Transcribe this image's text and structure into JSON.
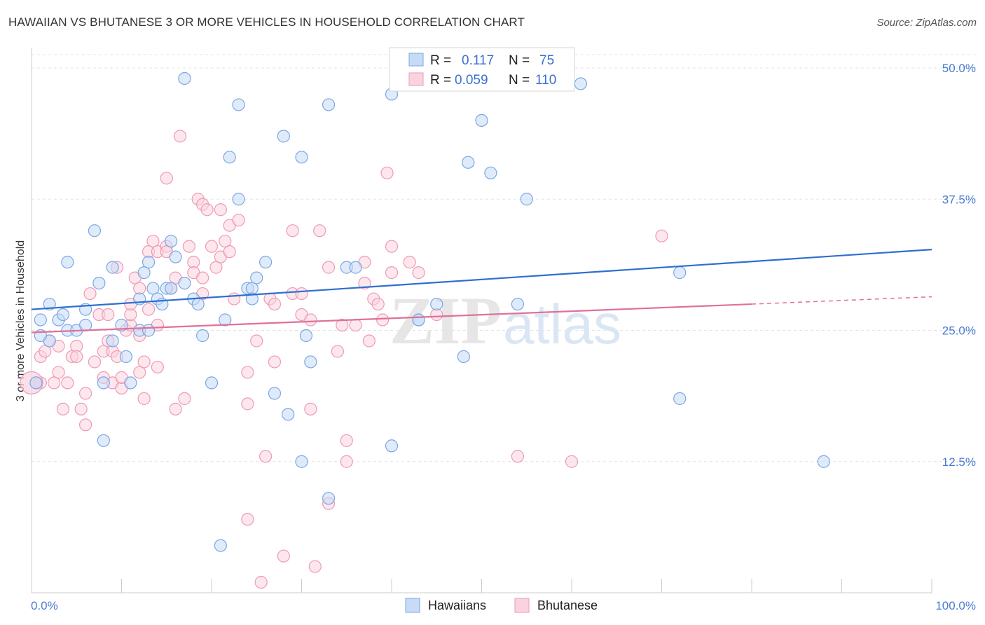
{
  "title": "HAWAIIAN VS BHUTANESE 3 OR MORE VEHICLES IN HOUSEHOLD CORRELATION CHART",
  "source": "Source: ZipAtlas.com",
  "colors": {
    "hawaiian": "#7aa7e6",
    "hawaiian_fill": "#c7dbf6",
    "hawaiian_line": "#2f6fcf",
    "bhutanese": "#ef9ab5",
    "bhutanese_fill": "#f9d3df",
    "bhutanese_line": "#e0709a",
    "tick": "#4a7bd0"
  },
  "legend": {
    "r_label": "R =",
    "n_label": "N =",
    "hawaiian_r": "0.117",
    "hawaiian_n": "75",
    "bhutanese_r": "0.059",
    "bhutanese_n": "110"
  },
  "chart_data": {
    "type": "scatter",
    "ylabel": "3 or more Vehicles in Household",
    "xlim": [
      0,
      100
    ],
    "ylim": [
      0,
      52.5
    ],
    "x_ticks": [
      "0.0%",
      "100.0%"
    ],
    "y_ticks": [
      {
        "v": 12.5,
        "label": "12.5%"
      },
      {
        "v": 25.0,
        "label": "25.0%"
      },
      {
        "v": 37.5,
        "label": "37.5%"
      },
      {
        "v": 50.0,
        "label": "50.0%"
      }
    ],
    "series": [
      {
        "name": "Hawaiians",
        "trend": [
          [
            0,
            27.0
          ],
          [
            100,
            32.7
          ]
        ],
        "points": [
          [
            1,
            26
          ],
          [
            2,
            27.5
          ],
          [
            2,
            24
          ],
          [
            3,
            26
          ],
          [
            4,
            25
          ],
          [
            1,
            24.5
          ],
          [
            3.5,
            26.5
          ],
          [
            5,
            25
          ],
          [
            6,
            27
          ],
          [
            4,
            31.5
          ],
          [
            6,
            25.5
          ],
          [
            7,
            34.5
          ],
          [
            7.5,
            29.5
          ],
          [
            8,
            20
          ],
          [
            9,
            24
          ],
          [
            9,
            31
          ],
          [
            8,
            14.5
          ],
          [
            10,
            25.5
          ],
          [
            10.5,
            22.5
          ],
          [
            11,
            20
          ],
          [
            12,
            25
          ],
          [
            12,
            28
          ],
          [
            12.5,
            30.5
          ],
          [
            13,
            31.5
          ],
          [
            13.5,
            29
          ],
          [
            14,
            28
          ],
          [
            15,
            29
          ],
          [
            14.5,
            27.5
          ],
          [
            15.5,
            29
          ],
          [
            15.5,
            33.5
          ],
          [
            16,
            32
          ],
          [
            17,
            49
          ],
          [
            17,
            29.5
          ],
          [
            18,
            28
          ],
          [
            18.5,
            27.5
          ],
          [
            19,
            24.5
          ],
          [
            20,
            20
          ],
          [
            21,
            4.5
          ],
          [
            21.5,
            26
          ],
          [
            22,
            41.5
          ],
          [
            23,
            37.5
          ],
          [
            23,
            46.5
          ],
          [
            24,
            29
          ],
          [
            24.5,
            29
          ],
          [
            24.5,
            28
          ],
          [
            25,
            30
          ],
          [
            26,
            31.5
          ],
          [
            27,
            19
          ],
          [
            28,
            43.5
          ],
          [
            28.5,
            17
          ],
          [
            30,
            41.5
          ],
          [
            30,
            12.5
          ],
          [
            30.5,
            24.5
          ],
          [
            31,
            22
          ],
          [
            33,
            9
          ],
          [
            33,
            46.5
          ],
          [
            35,
            31
          ],
          [
            36,
            31
          ],
          [
            40,
            14
          ],
          [
            40,
            47.5
          ],
          [
            43,
            26
          ],
          [
            43,
            26
          ],
          [
            45,
            27.5
          ],
          [
            48.5,
            41
          ],
          [
            48,
            22.5
          ],
          [
            50,
            45
          ],
          [
            51,
            40
          ],
          [
            54,
            27.5
          ],
          [
            55,
            37.5
          ],
          [
            61,
            48.5
          ],
          [
            72,
            18.5
          ],
          [
            72,
            30.5
          ],
          [
            88,
            12.5
          ],
          [
            0.5,
            20
          ],
          [
            13,
            25
          ]
        ]
      },
      {
        "name": "Bhutanese",
        "trend": [
          [
            0,
            24.8
          ],
          [
            80,
            27.5
          ]
        ],
        "trend_dashed": [
          [
            80,
            27.5
          ],
          [
            100,
            28.2
          ]
        ],
        "points": [
          [
            0.5,
            20
          ],
          [
            1,
            22.5
          ],
          [
            1,
            20
          ],
          [
            1.5,
            23
          ],
          [
            2,
            24
          ],
          [
            2.5,
            20
          ],
          [
            3,
            21
          ],
          [
            3,
            23.5
          ],
          [
            3.5,
            17.5
          ],
          [
            4,
            20
          ],
          [
            4.5,
            22.5
          ],
          [
            5,
            23.5
          ],
          [
            5,
            22.5
          ],
          [
            5.5,
            17.5
          ],
          [
            6,
            19
          ],
          [
            6,
            16
          ],
          [
            6.5,
            28.5
          ],
          [
            7,
            22
          ],
          [
            7.5,
            26.5
          ],
          [
            8,
            23
          ],
          [
            8,
            20.5
          ],
          [
            8.5,
            24
          ],
          [
            8.5,
            26.5
          ],
          [
            9,
            23
          ],
          [
            9,
            20
          ],
          [
            9.5,
            31
          ],
          [
            9.5,
            22.5
          ],
          [
            10,
            19.5
          ],
          [
            10,
            20.5
          ],
          [
            10.5,
            25
          ],
          [
            11,
            25.5
          ],
          [
            11,
            26.5
          ],
          [
            11,
            27.5
          ],
          [
            11.5,
            30
          ],
          [
            12,
            21
          ],
          [
            12,
            29
          ],
          [
            12.5,
            18.5
          ],
          [
            12.5,
            22
          ],
          [
            13,
            32.5
          ],
          [
            13,
            27
          ],
          [
            13.5,
            33.5
          ],
          [
            14,
            25.5
          ],
          [
            14,
            21.5
          ],
          [
            14,
            32.5
          ],
          [
            15,
            33
          ],
          [
            15,
            32.5
          ],
          [
            15,
            39.5
          ],
          [
            15.5,
            29
          ],
          [
            16,
            30
          ],
          [
            16,
            17.5
          ],
          [
            16.5,
            43.5
          ],
          [
            17,
            18.5
          ],
          [
            17.5,
            33
          ],
          [
            18,
            31.5
          ],
          [
            18,
            30.5
          ],
          [
            18.5,
            37.5
          ],
          [
            19,
            37
          ],
          [
            19,
            28.5
          ],
          [
            19.5,
            36.5
          ],
          [
            19,
            30
          ],
          [
            20,
            33
          ],
          [
            20.5,
            31
          ],
          [
            21,
            32
          ],
          [
            21,
            36.5
          ],
          [
            21.5,
            33.5
          ],
          [
            22,
            32.5
          ],
          [
            22,
            35
          ],
          [
            22.5,
            28
          ],
          [
            23,
            35.5
          ],
          [
            24,
            21
          ],
          [
            24,
            18
          ],
          [
            24,
            7
          ],
          [
            25,
            24
          ],
          [
            25.5,
            1
          ],
          [
            26,
            13
          ],
          [
            26.5,
            28
          ],
          [
            27,
            22
          ],
          [
            27,
            27.5
          ],
          [
            28,
            3.5
          ],
          [
            29,
            34.5
          ],
          [
            29,
            28.5
          ],
          [
            30,
            26.5
          ],
          [
            30,
            28.5
          ],
          [
            31,
            26
          ],
          [
            31,
            17.5
          ],
          [
            31.5,
            2.5
          ],
          [
            32,
            34.5
          ],
          [
            33,
            8.5
          ],
          [
            33,
            31
          ],
          [
            34,
            23
          ],
          [
            34.5,
            25.5
          ],
          [
            35,
            14.5
          ],
          [
            35,
            12.5
          ],
          [
            36,
            25.5
          ],
          [
            37,
            31.5
          ],
          [
            37,
            29.5
          ],
          [
            37.5,
            24
          ],
          [
            38,
            28
          ],
          [
            38.5,
            27.5
          ],
          [
            39,
            26
          ],
          [
            39.5,
            40
          ],
          [
            40,
            33
          ],
          [
            40,
            30.5
          ],
          [
            42,
            31.5
          ],
          [
            43,
            30.5
          ],
          [
            45,
            26.5
          ],
          [
            54,
            13
          ],
          [
            60,
            12.5
          ],
          [
            70,
            34
          ],
          [
            12,
            24.5
          ]
        ]
      }
    ],
    "watermark": "ZIPatlas"
  },
  "bottom_legend": {
    "hawaiians": "Hawaiians",
    "bhutanese": "Bhutanese"
  }
}
